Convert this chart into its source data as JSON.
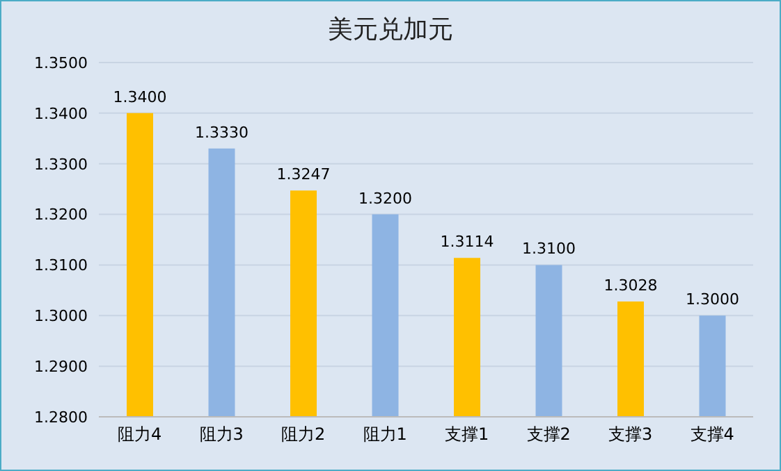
{
  "chart_data": {
    "type": "bar",
    "title": "美元兑加元",
    "categories": [
      "阻力4",
      "阻力3",
      "阻力2",
      "阻力1",
      "支撑1",
      "支撑2",
      "支撑3",
      "支撑4"
    ],
    "values": [
      1.34,
      1.333,
      1.3247,
      1.32,
      1.3114,
      1.31,
      1.3028,
      1.3
    ],
    "colors": [
      "#ffc000",
      "#8eb4e3",
      "#ffc000",
      "#8eb4e3",
      "#ffc000",
      "#8eb4e3",
      "#ffc000",
      "#8eb4e3"
    ],
    "value_labels": [
      "1.3400",
      "1.3330",
      "1.3247",
      "1.3200",
      "1.3114",
      "1.3100",
      "1.3028",
      "1.3000"
    ],
    "ylim": [
      1.28,
      1.35
    ],
    "yticks": [
      {
        "value": 1.28,
        "label": "1.2800"
      },
      {
        "value": 1.29,
        "label": "1.2900"
      },
      {
        "value": 1.3,
        "label": "1.3000"
      },
      {
        "value": 1.31,
        "label": "1.3100"
      },
      {
        "value": 1.32,
        "label": "1.3200"
      },
      {
        "value": 1.33,
        "label": "1.3300"
      },
      {
        "value": 1.34,
        "label": "1.3400"
      },
      {
        "value": 1.35,
        "label": "1.3500"
      }
    ],
    "grid": "y"
  }
}
